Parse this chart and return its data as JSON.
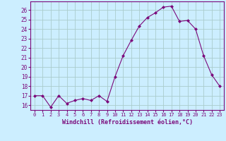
{
  "x": [
    0,
    1,
    2,
    3,
    4,
    5,
    6,
    7,
    8,
    9,
    10,
    11,
    12,
    13,
    14,
    15,
    16,
    17,
    18,
    19,
    20,
    21,
    22,
    23
  ],
  "y": [
    17.0,
    17.0,
    15.8,
    17.0,
    16.2,
    16.5,
    16.7,
    16.5,
    17.0,
    16.4,
    19.0,
    21.2,
    22.8,
    24.3,
    25.2,
    25.7,
    26.3,
    26.4,
    24.8,
    24.9,
    24.0,
    21.2,
    19.2,
    18.0
  ],
  "line_color": "#7b0a7b",
  "marker_color": "#7b0a7b",
  "bg_color": "#cceeff",
  "grid_color": "#aacccc",
  "tick_label_color": "#7b0a7b",
  "axis_color": "#7b0a7b",
  "xlabel": "Windchill (Refroidissement éolien,°C)",
  "ylim": [
    15.5,
    26.9
  ],
  "yticks": [
    16,
    17,
    18,
    19,
    20,
    21,
    22,
    23,
    24,
    25,
    26
  ],
  "xlim": [
    -0.5,
    23.5
  ],
  "xticks": [
    0,
    1,
    2,
    3,
    4,
    5,
    6,
    7,
    8,
    9,
    10,
    11,
    12,
    13,
    14,
    15,
    16,
    17,
    18,
    19,
    20,
    21,
    22,
    23
  ],
  "font_size_x": 5.0,
  "font_size_y": 5.5,
  "font_size_xlabel": 6.0
}
